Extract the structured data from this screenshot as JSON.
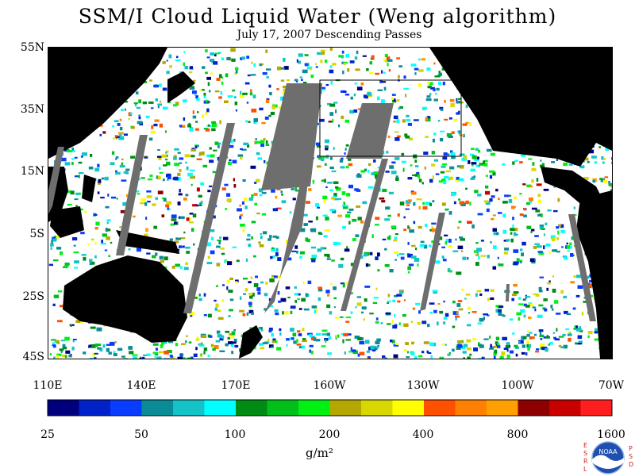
{
  "title": "SSM/I Cloud Liquid Water (Weng algorithm)",
  "subtitle": "July 17, 2007  Descending Passes",
  "lat_labels": [
    "55N",
    "35N",
    "15N",
    "5S",
    "25S",
    "45S"
  ],
  "lon_labels": [
    "110E",
    "140E",
    "170E",
    "160W",
    "130W",
    "100W",
    "70W"
  ],
  "colorbar": {
    "tick_labels": [
      "25",
      "50",
      "100",
      "200",
      "400",
      "800",
      "1600"
    ],
    "unit": "g/m²",
    "colors": [
      "#00007f",
      "#0022c8",
      "#0a3cff",
      "#0a8c96",
      "#14c3c8",
      "#00ffff",
      "#008c14",
      "#00bf1a",
      "#00f014",
      "#b4a800",
      "#d8d800",
      "#ffff00",
      "#ff5000",
      "#ff7f00",
      "#ffa000",
      "#8c0000",
      "#c80000",
      "#ff1e1e"
    ]
  },
  "logo": {
    "left_letters": "ESRL",
    "right_letters": "PSD",
    "emblem_text": "NOAA"
  },
  "colors": {
    "land": "#000000",
    "no_data": "#6e6e6e",
    "ocean_clear": "#ffffff"
  }
}
